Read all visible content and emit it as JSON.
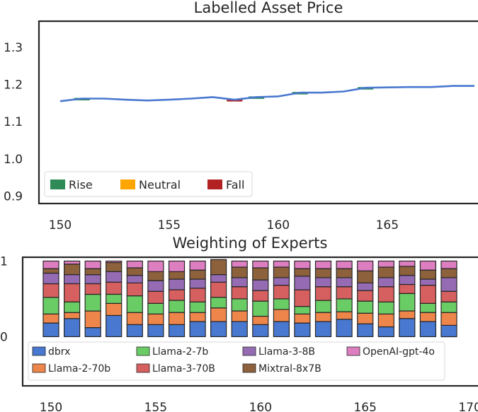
{
  "chart_data": [
    {
      "type": "line",
      "title": "Labelled Asset Price",
      "xlabel": "",
      "ylabel": "",
      "xlim": [
        149,
        169
      ],
      "ylim": [
        0.88,
        1.37
      ],
      "xticks": [
        "150",
        "155",
        "160",
        "165"
      ],
      "yticks": [
        "0.9",
        "1.0",
        "1.1",
        "1.2",
        "1.3"
      ],
      "line_color": "#4878d0",
      "x": [
        150,
        151,
        152,
        153,
        154,
        155,
        156,
        157,
        158,
        159,
        160,
        161,
        162,
        163,
        164,
        165,
        166,
        167,
        168,
        169
      ],
      "values": [
        1.155,
        1.162,
        1.162,
        1.159,
        1.157,
        1.159,
        1.162,
        1.166,
        1.159,
        1.166,
        1.168,
        1.178,
        1.178,
        1.181,
        1.191,
        1.192,
        1.193,
        1.193,
        1.196,
        1.196
      ],
      "label_marks": [
        {
          "x": 151,
          "label": "Rise"
        },
        {
          "x": 158,
          "label": "Fall"
        },
        {
          "x": 159,
          "label": "Rise"
        },
        {
          "x": 161,
          "label": "Rise"
        },
        {
          "x": 164,
          "label": "Rise"
        }
      ],
      "legend": {
        "placement": "lower-left",
        "items": [
          {
            "label": "Rise",
            "color": "#2e8b57"
          },
          {
            "label": "Neutral",
            "color": "#ffa500"
          },
          {
            "label": "Fall",
            "color": "#b22222"
          }
        ]
      }
    },
    {
      "type": "bar",
      "stacked": true,
      "title": "Weighting of Experts",
      "xlabel": "",
      "ylabel": "",
      "xlim": [
        148.8,
        170
      ],
      "ylim": [
        -0.65,
        1.05
      ],
      "xticks": [
        "150",
        "155",
        "160",
        "165",
        "170"
      ],
      "yticks": [
        "0",
        "1"
      ],
      "categories": [
        150,
        151,
        152,
        153,
        154,
        155,
        156,
        157,
        158,
        159,
        160,
        161,
        162,
        163,
        164,
        165,
        166,
        167,
        168,
        169
      ],
      "series": [
        {
          "name": "dbrx",
          "color": "#4878d0",
          "values": [
            0.18,
            0.24,
            0.12,
            0.28,
            0.16,
            0.16,
            0.16,
            0.2,
            0.2,
            0.2,
            0.16,
            0.2,
            0.18,
            0.2,
            0.23,
            0.17,
            0.13,
            0.24,
            0.2,
            0.15
          ]
        },
        {
          "name": "Llama-2-70b",
          "color": "#ee854a",
          "values": [
            0.12,
            0.08,
            0.22,
            0.16,
            0.16,
            0.14,
            0.16,
            0.12,
            0.18,
            0.14,
            0.11,
            0.16,
            0.12,
            0.12,
            0.1,
            0.14,
            0.17,
            0.1,
            0.12,
            0.17
          ]
        },
        {
          "name": "Llama-2-7b",
          "color": "#6acc64",
          "values": [
            0.22,
            0.14,
            0.22,
            0.12,
            0.22,
            0.14,
            0.16,
            0.14,
            0.14,
            0.16,
            0.2,
            0.14,
            0.1,
            0.16,
            0.17,
            0.16,
            0.16,
            0.23,
            0.12,
            0.14
          ]
        },
        {
          "name": "Llama-3-70B",
          "color": "#d65f5f",
          "values": [
            0.18,
            0.24,
            0.14,
            0.16,
            0.17,
            0.16,
            0.14,
            0.18,
            0.2,
            0.16,
            0.14,
            0.18,
            0.22,
            0.18,
            0.16,
            0.14,
            0.2,
            0.12,
            0.24,
            0.14
          ]
        },
        {
          "name": "Llama-3-8B",
          "color": "#956cb4",
          "values": [
            0.14,
            0.12,
            0.12,
            0.14,
            0.1,
            0.14,
            0.14,
            0.12,
            0.1,
            0.12,
            0.14,
            0.1,
            0.18,
            0.12,
            0.12,
            0.1,
            0.12,
            0.12,
            0.08,
            0.18
          ]
        },
        {
          "name": "Mixtral-8x7B",
          "color": "#8c613c",
          "values": [
            0.06,
            0.14,
            0.08,
            0.12,
            0.1,
            0.12,
            0.1,
            0.12,
            0.2,
            0.14,
            0.16,
            0.14,
            0.1,
            0.12,
            0.12,
            0.16,
            0.14,
            0.12,
            0.12,
            0.12
          ]
        },
        {
          "name": "OpenAI-gpt-4o",
          "color": "#dc7ec0",
          "values": [
            0.1,
            0.04,
            0.1,
            0.02,
            0.09,
            0.14,
            0.14,
            0.12,
            0.0,
            0.08,
            0.09,
            0.08,
            0.1,
            0.1,
            0.1,
            0.13,
            0.08,
            0.07,
            0.12,
            0.1
          ]
        }
      ],
      "legend": {
        "placement": "lower-left",
        "columns": 4,
        "order": [
          "dbrx",
          "Llama-2-70b",
          "Llama-2-7b",
          "Llama-3-70B",
          "Llama-3-8B",
          "Mixtral-8x7B",
          "OpenAI-gpt-4o"
        ]
      }
    }
  ]
}
